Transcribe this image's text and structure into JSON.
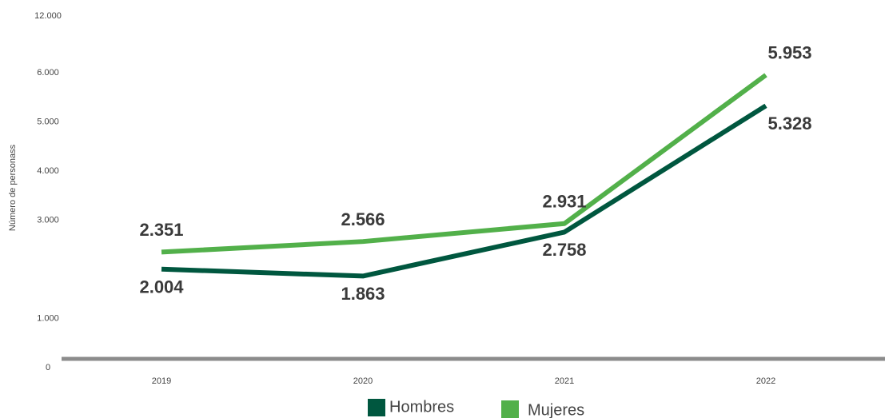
{
  "chart_data": {
    "type": "line",
    "y_label": "Número de personass",
    "categories": [
      "2019",
      "2020",
      "2021",
      "2022"
    ],
    "series": [
      {
        "name": "Hombres",
        "color": "#00573f",
        "values": [
          2004,
          1863,
          2758,
          5328
        ],
        "value_labels": [
          "2.004",
          "1.863",
          "2.758",
          "5.328"
        ]
      },
      {
        "name": "Mujeres",
        "color": "#52b04a",
        "values": [
          2351,
          2566,
          2931,
          5953
        ],
        "value_labels": [
          "2.351",
          "2.566",
          "2.931",
          "5.953"
        ]
      }
    ],
    "ylim": [
      0,
      12000
    ],
    "yticks": [
      0,
      {
        "value": 1000,
        "label": "1.000"
      },
      {
        "value": 3000,
        "label": "3.000"
      },
      {
        "value": 4000,
        "label": "4.000"
      },
      {
        "value": 5000,
        "label": "5.000"
      },
      {
        "value": 6000,
        "label": "6.000"
      },
      {
        "value": 12000,
        "label": "12.000"
      }
    ],
    "grid": false,
    "legend": "bottom"
  }
}
